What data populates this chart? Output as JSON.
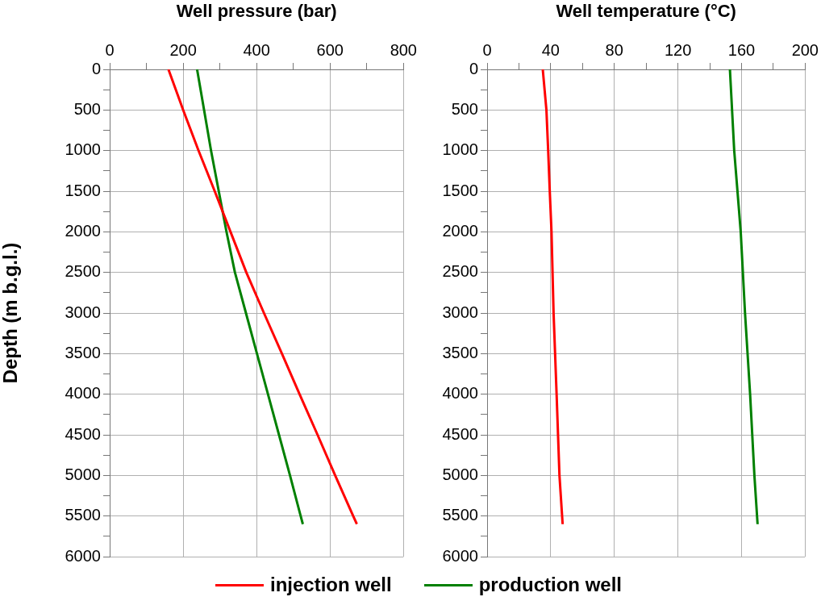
{
  "chart_data": [
    {
      "type": "line",
      "xlabel": "Well pressure (bar)",
      "ylabel": "Depth (m b.g.l.)",
      "xlim": [
        0,
        800
      ],
      "xticks": [
        0,
        {
          "value": 100,
          "label": null
        },
        200,
        {
          "value": 300,
          "label": null
        },
        400,
        {
          "value": 500,
          "label": null
        },
        600,
        {
          "value": 700,
          "label": null
        },
        800
      ],
      "ylim": [
        6000,
        0
      ],
      "yticks": [
        0,
        {
          "value": 250,
          "label": null
        },
        500,
        {
          "value": 750,
          "label": null
        },
        1000,
        {
          "value": 1250,
          "label": null
        },
        1500,
        {
          "value": 1750,
          "label": null
        },
        2000,
        {
          "value": 2250,
          "label": null
        },
        2500,
        {
          "value": 2750,
          "label": null
        },
        3000,
        {
          "value": 3250,
          "label": null
        },
        3500,
        {
          "value": 3750,
          "label": null
        },
        4000,
        {
          "value": 4250,
          "label": null
        },
        4500,
        {
          "value": 4750,
          "label": null
        },
        5000,
        {
          "value": 5250,
          "label": null
        },
        5500,
        {
          "value": 5750,
          "label": null
        },
        6000
      ],
      "grid": true,
      "legend": "bottom",
      "marker": "none",
      "line_style": "solid",
      "series": [
        {
          "name": "injection well",
          "color": "#ff0000",
          "x": [
            160,
            200,
            242,
            286,
            329,
            372,
            420,
            469,
            517,
            566,
            614,
            663,
            673
          ],
          "values": [
            0,
            500,
            1000,
            1500,
            2000,
            2500,
            3000,
            3500,
            4000,
            4500,
            5000,
            5500,
            5600
          ]
        },
        {
          "name": "production well",
          "color": "#008000",
          "x": [
            238,
            257,
            276,
            297,
            318,
            341,
            371,
            401,
            431,
            461,
            491,
            520,
            526
          ],
          "values": [
            0,
            500,
            1000,
            1500,
            2000,
            2500,
            3000,
            3500,
            4000,
            4500,
            5000,
            5500,
            5600
          ]
        }
      ]
    },
    {
      "type": "line",
      "xlabel": "Well temperature (°C)",
      "xlim": [
        0,
        200
      ],
      "xticks": [
        0,
        {
          "value": 20,
          "label": null
        },
        40,
        {
          "value": 60,
          "label": null
        },
        80,
        {
          "value": 100,
          "label": null
        },
        120,
        {
          "value": 140,
          "label": null
        },
        160,
        {
          "value": 180,
          "label": null
        },
        200
      ],
      "ylim": [
        6000,
        0
      ],
      "yticks": [
        0,
        {
          "value": 250,
          "label": null
        },
        500,
        {
          "value": 750,
          "label": null
        },
        1000,
        {
          "value": 1250,
          "label": null
        },
        1500,
        {
          "value": 1750,
          "label": null
        },
        2000,
        {
          "value": 2250,
          "label": null
        },
        2500,
        {
          "value": 2750,
          "label": null
        },
        3000,
        {
          "value": 3250,
          "label": null
        },
        3500,
        {
          "value": 3750,
          "label": null
        },
        4000,
        {
          "value": 4250,
          "label": null
        },
        4500,
        {
          "value": 4750,
          "label": null
        },
        5000,
        {
          "value": 5250,
          "label": null
        },
        5500,
        {
          "value": 5750,
          "label": null
        },
        6000
      ],
      "grid": true,
      "marker": "none",
      "line_style": "solid",
      "series": [
        {
          "color": "#ff0000",
          "x": [
            35,
            37.3,
            38.4,
            39.4,
            40.5,
            41.8,
            43.7,
            45.5,
            47.5
          ],
          "values": [
            0,
            500,
            1000,
            1500,
            2000,
            3000,
            4000,
            5000,
            5600
          ]
        },
        {
          "color": "#008000",
          "x": [
            152.7,
            155.4,
            159.5,
            162.2,
            165.4,
            168.1,
            170.1
          ],
          "values": [
            0,
            1000,
            2000,
            3000,
            4000,
            5000,
            5600
          ]
        }
      ]
    }
  ]
}
